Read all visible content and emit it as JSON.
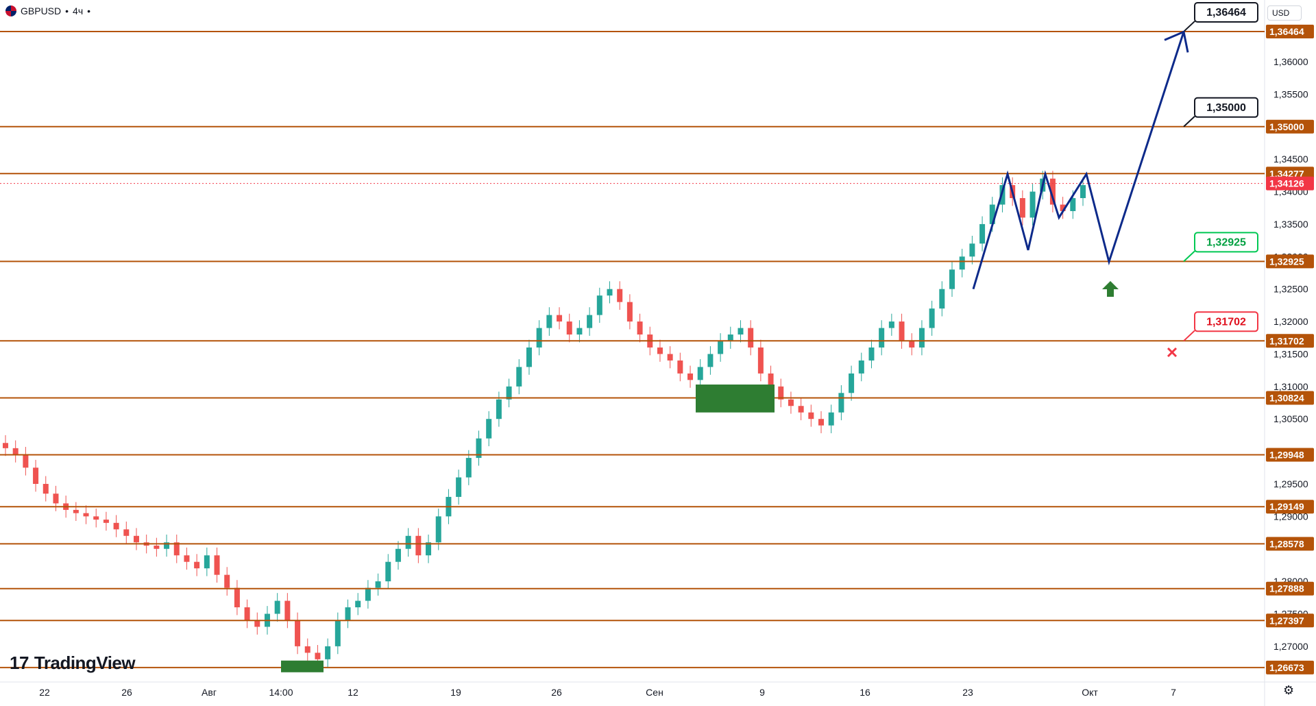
{
  "header": {
    "symbol": "GBPUSD",
    "separator": "•",
    "interval": "4ч",
    "dot": "•"
  },
  "currency_button": "USD",
  "logo_text": "TradingView",
  "logo_mark": "17",
  "settings_icon": "gear-icon",
  "colors": {
    "level": "#b45309",
    "up": "#26a69a",
    "down": "#ef5350",
    "stop_up": "#4caf50",
    "stop_down": "#f23645",
    "projection": "#0d2a8a",
    "price_tag": "#b45309",
    "current_price": "#f23645"
  },
  "chart_data": {
    "type": "candlestick",
    "ylim": [
      1.2645,
      1.3695
    ],
    "y_ticks": [
      "1,27000",
      "1,27500",
      "1,28000",
      "1,29000",
      "1,29500",
      "1,30000",
      "1,30500",
      "1,31000",
      "1,31500",
      "1,32000",
      "1,32500",
      "1,33000",
      "1,33500",
      "1,34000",
      "1,34500",
      "1,35500",
      "1,36000"
    ],
    "x_ticks": [
      "22",
      "26",
      "Авг",
      "14:00",
      "12",
      "19",
      "26",
      "Сен",
      "9",
      "16",
      "23",
      "Окт",
      "7"
    ],
    "levels": [
      "1,36464",
      "1,35000",
      "1,34277",
      "1,32925",
      "1,31702",
      "1,30824",
      "1,29948",
      "1,29149",
      "1,28578",
      "1,27888",
      "1,27397",
      "1,26673"
    ],
    "current_price": "1,34126",
    "callouts": [
      {
        "value": "1,36464",
        "style": "black"
      },
      {
        "value": "1,35000",
        "style": "black"
      },
      {
        "value": "1,32925",
        "style": "green"
      },
      {
        "value": "1,31702",
        "style": "red"
      }
    ],
    "closes": [
      1.3005,
      1.2995,
      1.2975,
      1.295,
      1.2935,
      1.292,
      1.291,
      1.2905,
      1.29,
      1.2895,
      1.289,
      1.288,
      1.287,
      1.286,
      1.2855,
      1.285,
      1.286,
      1.284,
      1.283,
      1.282,
      1.284,
      1.281,
      1.279,
      1.276,
      1.274,
      1.273,
      1.275,
      1.277,
      1.274,
      1.27,
      1.269,
      1.268,
      1.27,
      1.274,
      1.276,
      1.277,
      1.279,
      1.28,
      1.283,
      1.285,
      1.287,
      1.284,
      1.286,
      1.29,
      1.293,
      1.296,
      1.299,
      1.302,
      1.305,
      1.308,
      1.31,
      1.313,
      1.316,
      1.319,
      1.321,
      1.32,
      1.318,
      1.319,
      1.321,
      1.324,
      1.325,
      1.323,
      1.32,
      1.318,
      1.316,
      1.315,
      1.314,
      1.312,
      1.311,
      1.313,
      1.315,
      1.317,
      1.318,
      1.319,
      1.316,
      1.312,
      1.31,
      1.308,
      1.307,
      1.306,
      1.305,
      1.304,
      1.306,
      1.309,
      1.312,
      1.314,
      1.316,
      1.319,
      1.32,
      1.317,
      1.316,
      1.319,
      1.322,
      1.325,
      1.328,
      1.33,
      1.332,
      1.335,
      1.338,
      1.341,
      1.339,
      1.336,
      1.34,
      1.342,
      1.338,
      1.337,
      1.339,
      1.341
    ]
  }
}
